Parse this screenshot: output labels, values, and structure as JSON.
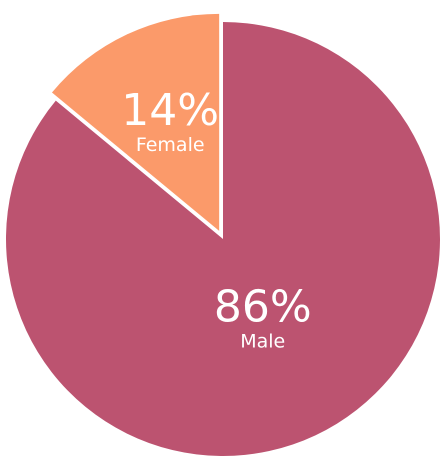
{
  "chart_data": {
    "type": "pie",
    "title": "",
    "categories": [
      "Male",
      "Female"
    ],
    "values": [
      86,
      14
    ],
    "value_labels": [
      "86%",
      "14%"
    ],
    "colors": [
      "#bc5370",
      "#fb9a6a"
    ],
    "legend": "none",
    "exploded": "Female"
  }
}
